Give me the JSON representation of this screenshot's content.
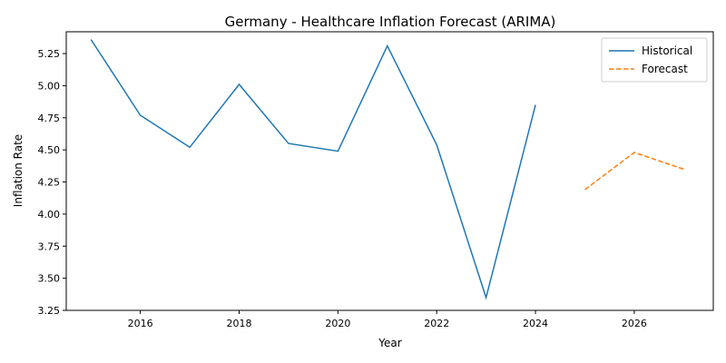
{
  "chart_data": {
    "type": "line",
    "title": "Germany - Healthcare Inflation Forecast (ARIMA)",
    "xlabel": "Year",
    "ylabel": "Inflation Rate",
    "xlim": [
      2014.5,
      2027.6
    ],
    "ylim": [
      3.25,
      5.42
    ],
    "x_ticks": [
      2016,
      2018,
      2020,
      2022,
      2024,
      2026
    ],
    "y_ticks": [
      3.25,
      3.5,
      3.75,
      4.0,
      4.25,
      4.5,
      4.75,
      5.0,
      5.25
    ],
    "grid": false,
    "legend_position": "top-right",
    "series": [
      {
        "name": "Historical",
        "style": "solid",
        "color": "#1f77b4",
        "x": [
          2015,
          2016,
          2017,
          2018,
          2019,
          2020,
          2021,
          2022,
          2023,
          2024
        ],
        "values": [
          5.36,
          4.77,
          4.52,
          5.01,
          4.55,
          4.49,
          5.31,
          4.54,
          3.35,
          4.85
        ]
      },
      {
        "name": "Forecast",
        "style": "dashed",
        "color": "#ff7f0e",
        "x": [
          2025,
          2026,
          2027
        ],
        "values": [
          4.19,
          4.48,
          4.35
        ]
      }
    ]
  }
}
